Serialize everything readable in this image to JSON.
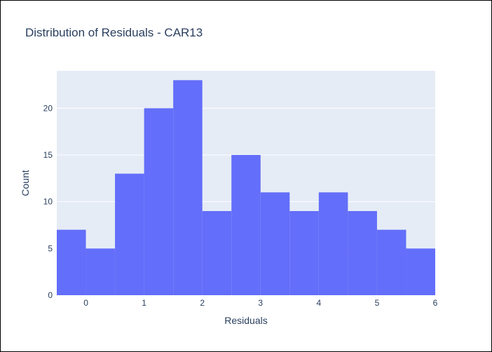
{
  "chart_data": {
    "type": "bar",
    "subtype": "histogram",
    "title": "Distribution of Residuals - CAR13",
    "xlabel": "Residuals",
    "ylabel": "Count",
    "xlim": [
      -0.5,
      6
    ],
    "ylim": [
      0,
      24
    ],
    "bin_width": 0.5,
    "bins": [
      {
        "start": -0.5,
        "end": 0.0,
        "count": 7
      },
      {
        "start": 0.0,
        "end": 0.5,
        "count": 5
      },
      {
        "start": 0.5,
        "end": 1.0,
        "count": 13
      },
      {
        "start": 1.0,
        "end": 1.5,
        "count": 20
      },
      {
        "start": 1.5,
        "end": 2.0,
        "count": 23
      },
      {
        "start": 2.0,
        "end": 2.5,
        "count": 9
      },
      {
        "start": 2.5,
        "end": 3.0,
        "count": 15
      },
      {
        "start": 3.0,
        "end": 3.5,
        "count": 11
      },
      {
        "start": 3.5,
        "end": 4.0,
        "count": 9
      },
      {
        "start": 4.0,
        "end": 4.5,
        "count": 11
      },
      {
        "start": 4.5,
        "end": 5.0,
        "count": 9
      },
      {
        "start": 5.0,
        "end": 5.5,
        "count": 7
      },
      {
        "start": 5.5,
        "end": 6.0,
        "count": 5
      }
    ],
    "x_ticks": [
      0,
      1,
      2,
      3,
      4,
      5,
      6
    ],
    "y_ticks": [
      0,
      5,
      10,
      15,
      20
    ],
    "grid": true,
    "bar_color": "#636efa",
    "plot_bg_color": "#e5ecf6",
    "text_color": "#2a3f5f"
  }
}
